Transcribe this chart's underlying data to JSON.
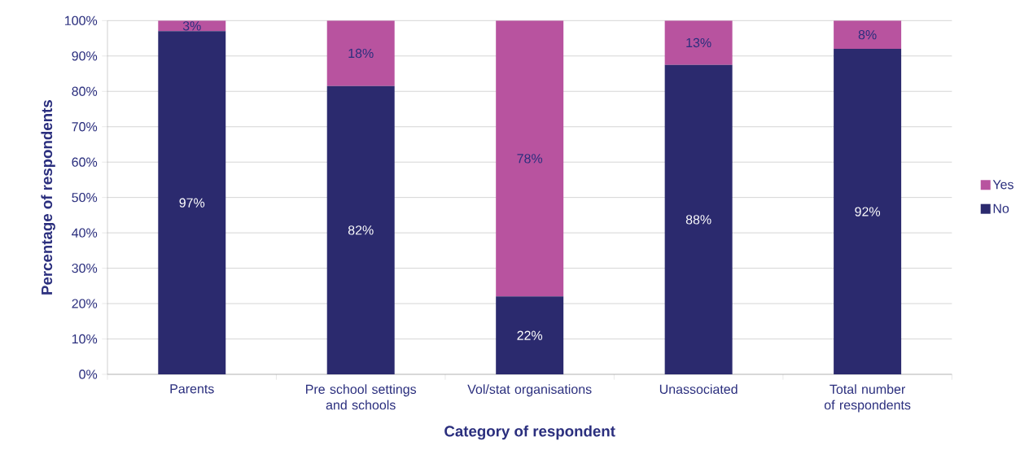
{
  "chart_data": {
    "type": "bar",
    "stacked": true,
    "xlabel": "Category of respondent",
    "ylabel": "Percentage of respondents",
    "categories": [
      "Parents",
      "Pre school settings and schools",
      "Vol/stat organisations",
      "Unassociated",
      "Total number of respondents"
    ],
    "series": [
      {
        "name": "No",
        "color": "#2b2a6e",
        "values": [
          97,
          81.5,
          22,
          87.5,
          92
        ],
        "value_labels": [
          "97%",
          "82%",
          "22%",
          "88%",
          "92%"
        ]
      },
      {
        "name": "Yes",
        "color": "#b8539f",
        "values": [
          3,
          18.5,
          78,
          12.5,
          8
        ],
        "value_labels": [
          "3%",
          "18%",
          "78%",
          "13%",
          "8%"
        ]
      }
    ],
    "ylim": [
      0,
      100
    ],
    "yticks": [
      {
        "value": 0,
        "label": "0%"
      },
      {
        "value": 10,
        "label": "10%"
      },
      {
        "value": 20,
        "label": "20%"
      },
      {
        "value": 30,
        "label": "30%"
      },
      {
        "value": 40,
        "label": "40%"
      },
      {
        "value": 50,
        "label": "50%"
      },
      {
        "value": 60,
        "label": "60%"
      },
      {
        "value": 70,
        "label": "70%"
      },
      {
        "value": 80,
        "label": "80%"
      },
      {
        "value": 90,
        "label": "90%"
      },
      {
        "value": 100,
        "label": "100%"
      }
    ],
    "grid": "y",
    "legend": "right"
  }
}
